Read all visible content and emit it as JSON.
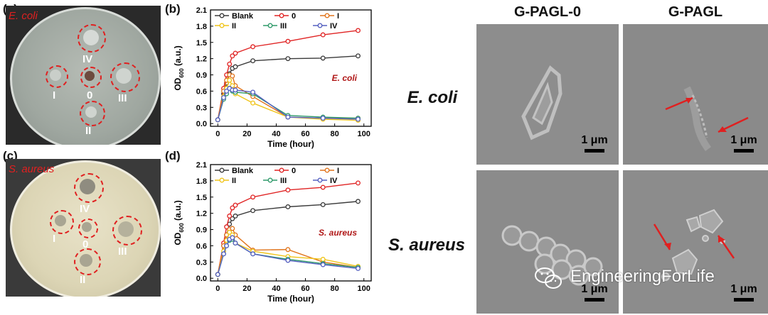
{
  "panels": {
    "a": "(a)",
    "b": "(b)",
    "c": "(c)",
    "d": "(d)"
  },
  "photos": {
    "top_species": "E. coli",
    "bottom_species": "S. aureus",
    "spot_labels": [
      "IV",
      "I",
      "0",
      "III",
      "II"
    ]
  },
  "sem": {
    "col_headers": [
      "G-PAGL-0",
      "G-PAGL"
    ],
    "row_labels": [
      "E. coli",
      "S. aureus"
    ],
    "scale_label": "1 μm",
    "watermark": "EngineeringForLife",
    "arrow_color": "#e02020"
  },
  "chart_data": [
    {
      "type": "line",
      "panel": "(b)",
      "annotation": "E. coli",
      "xlabel": "Time (hour)",
      "ylabel": "OD600 (a.u.)",
      "xlim": [
        -5,
        105
      ],
      "ylim": [
        -0.05,
        2.1
      ],
      "xticks": [
        0,
        20,
        40,
        60,
        80,
        100
      ],
      "yticks": [
        0.0,
        0.3,
        0.6,
        0.9,
        1.2,
        1.5,
        1.8,
        2.1
      ],
      "x": [
        0,
        4,
        6,
        8,
        10,
        12,
        24,
        48,
        72,
        96
      ],
      "legend_position": "top",
      "series": [
        {
          "name": "Blank",
          "color": "#3a3a3a",
          "values": [
            0.07,
            0.55,
            0.75,
            0.92,
            1.02,
            1.05,
            1.16,
            1.2,
            1.21,
            1.25
          ]
        },
        {
          "name": "0",
          "color": "#e02424",
          "values": [
            0.07,
            0.65,
            0.9,
            1.1,
            1.25,
            1.3,
            1.42,
            1.52,
            1.64,
            1.72
          ]
        },
        {
          "name": "I",
          "color": "#e0741c",
          "values": [
            0.07,
            0.6,
            0.8,
            0.9,
            0.88,
            0.7,
            0.5,
            0.12,
            0.1,
            0.1
          ]
        },
        {
          "name": "II",
          "color": "#f0c419",
          "values": [
            0.07,
            0.5,
            0.65,
            0.8,
            0.7,
            0.55,
            0.38,
            0.12,
            0.08,
            0.06
          ]
        },
        {
          "name": "III",
          "color": "#2f9a6a",
          "values": [
            0.07,
            0.45,
            0.55,
            0.65,
            0.6,
            0.58,
            0.55,
            0.15,
            0.12,
            0.1
          ]
        },
        {
          "name": "IV",
          "color": "#5560c0",
          "values": [
            0.07,
            0.48,
            0.6,
            0.65,
            0.62,
            0.62,
            0.58,
            0.12,
            0.1,
            0.08
          ]
        }
      ]
    },
    {
      "type": "line",
      "panel": "(d)",
      "annotation": "S. aureus",
      "xlabel": "Time (hour)",
      "ylabel": "OD600 (a.u.)",
      "xlim": [
        -5,
        105
      ],
      "ylim": [
        -0.05,
        2.1
      ],
      "xticks": [
        0,
        20,
        40,
        60,
        80,
        100
      ],
      "yticks": [
        0.0,
        0.3,
        0.6,
        0.9,
        1.2,
        1.5,
        1.8,
        2.1
      ],
      "x": [
        0,
        4,
        6,
        8,
        10,
        12,
        24,
        48,
        72,
        96
      ],
      "legend_position": "top",
      "series": [
        {
          "name": "Blank",
          "color": "#3a3a3a",
          "values": [
            0.07,
            0.6,
            0.8,
            1.0,
            1.1,
            1.15,
            1.25,
            1.32,
            1.36,
            1.42
          ]
        },
        {
          "name": "0",
          "color": "#e02424",
          "values": [
            0.07,
            0.65,
            0.95,
            1.15,
            1.3,
            1.35,
            1.5,
            1.63,
            1.68,
            1.76
          ]
        },
        {
          "name": "I",
          "color": "#e0741c",
          "values": [
            0.07,
            0.6,
            0.8,
            0.9,
            0.92,
            0.8,
            0.52,
            0.53,
            0.3,
            0.2
          ]
        },
        {
          "name": "II",
          "color": "#f0c419",
          "values": [
            0.07,
            0.5,
            0.7,
            0.85,
            0.8,
            0.65,
            0.5,
            0.4,
            0.35,
            0.22
          ]
        },
        {
          "name": "III",
          "color": "#2f9a6a",
          "values": [
            0.07,
            0.45,
            0.6,
            0.7,
            0.72,
            0.65,
            0.45,
            0.35,
            0.27,
            0.2
          ]
        },
        {
          "name": "IV",
          "color": "#5560c0",
          "values": [
            0.07,
            0.45,
            0.6,
            0.72,
            0.75,
            0.65,
            0.45,
            0.33,
            0.25,
            0.18
          ]
        }
      ]
    }
  ]
}
